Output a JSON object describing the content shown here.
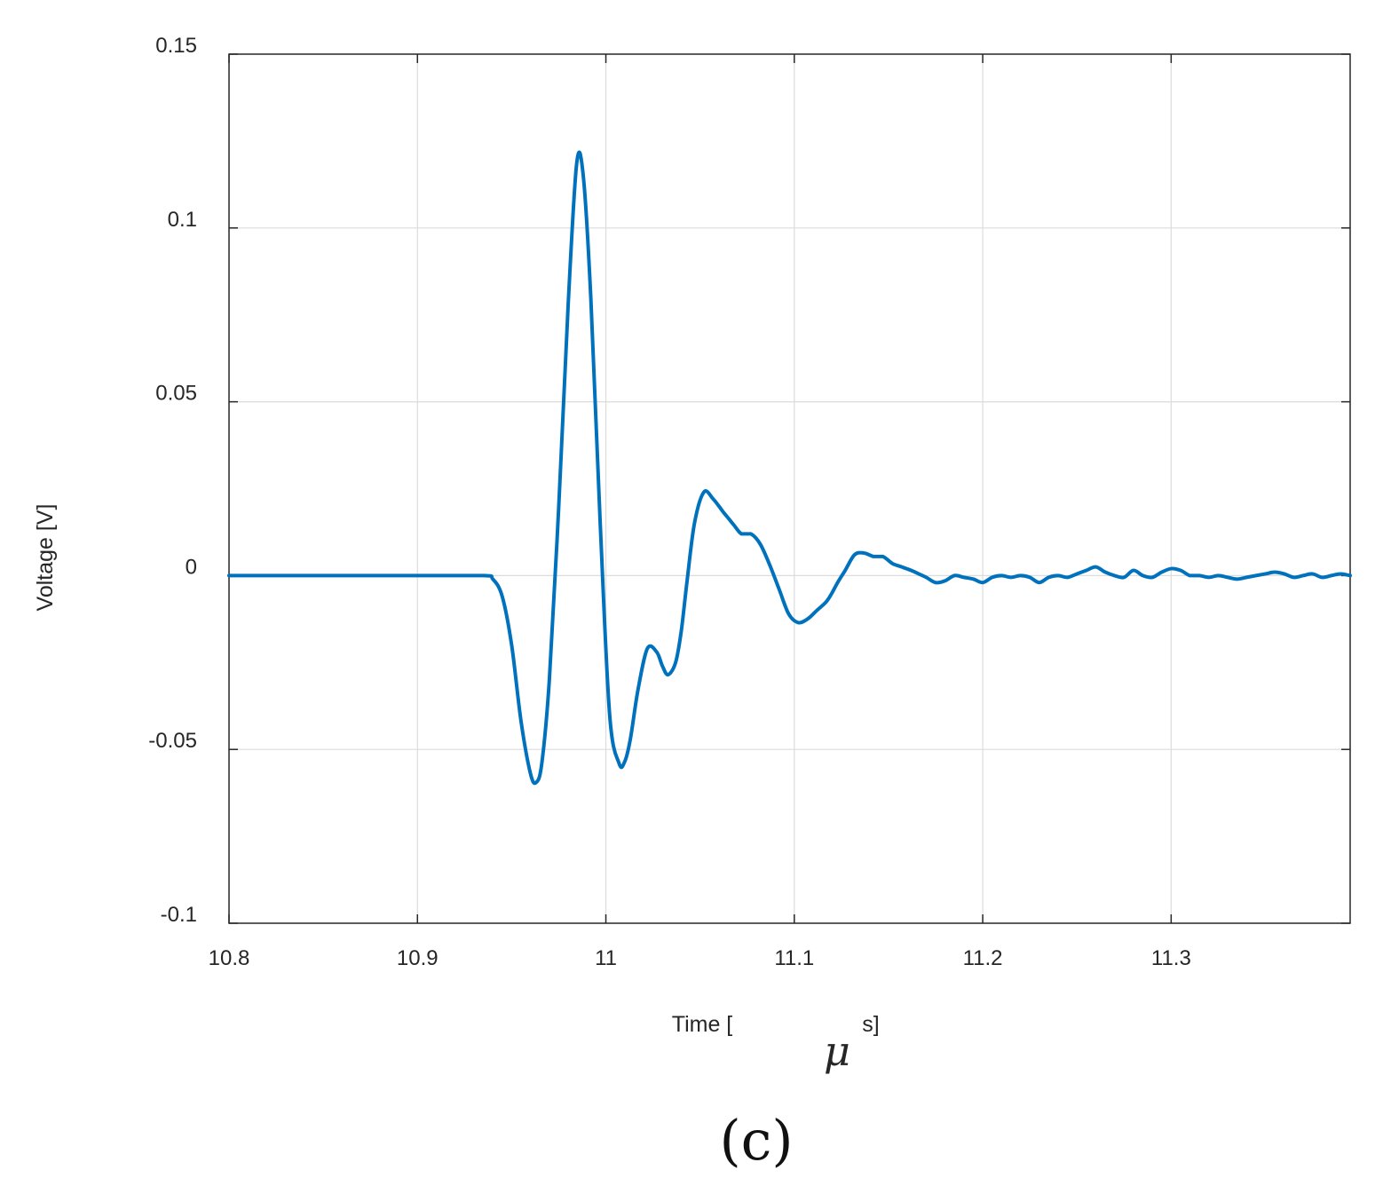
{
  "chart_data": {
    "type": "line",
    "xlabel": "Time [",
    "xlabel_symbol": "μ",
    "xlabel_unit": "s]",
    "ylabel": "Voltage [V]",
    "caption": "(c)",
    "xlim": [
      10.8,
      11.395
    ],
    "ylim": [
      -0.1,
      0.15
    ],
    "x_ticks": [
      10.8,
      10.9,
      11,
      11.1,
      11.2,
      11.3
    ],
    "x_tick_labels": [
      "10.8",
      "10.9",
      "11",
      "11.1",
      "11.2",
      "11.3"
    ],
    "y_ticks": [
      -0.1,
      -0.05,
      0,
      0.05,
      0.1,
      0.15
    ],
    "y_tick_labels": [
      "-0.1",
      "-0.05",
      "0",
      "0.05",
      "0.1",
      "0.15"
    ],
    "grid": true,
    "line_color": "#0072BD",
    "series": [
      {
        "x": [
          10.8,
          10.9,
          10.935,
          10.94,
          10.945,
          10.95,
          10.955,
          10.96,
          10.963,
          10.966,
          10.97,
          10.975,
          10.98,
          10.9845,
          10.988,
          10.992,
          10.997,
          11.002,
          11.007,
          11.01,
          11.013,
          11.017,
          11.022,
          11.027,
          11.03,
          11.033,
          11.037,
          11.04,
          11.043,
          11.047,
          11.052,
          11.057,
          11.062,
          11.065,
          11.068,
          11.072,
          11.077,
          11.082,
          11.087,
          11.092,
          11.097,
          11.102,
          11.107,
          11.112,
          11.117,
          11.12,
          11.123,
          11.127,
          11.132,
          11.137,
          11.142,
          11.147,
          11.152,
          11.157,
          11.162,
          11.166,
          11.17,
          11.175,
          11.18,
          11.185,
          11.19,
          11.195,
          11.2,
          11.205,
          11.21,
          11.215,
          11.22,
          11.225,
          11.23,
          11.235,
          11.24,
          11.245,
          11.25,
          11.255,
          11.26,
          11.265,
          11.27,
          11.275,
          11.28,
          11.285,
          11.29,
          11.295,
          11.3,
          11.305,
          11.31,
          11.315,
          11.32,
          11.325,
          11.33,
          11.335,
          11.34,
          11.345,
          11.35,
          11.355,
          11.36,
          11.365,
          11.37,
          11.375,
          11.38,
          11.385,
          11.39,
          11.395
        ],
        "y": [
          0,
          0,
          0,
          -0.001,
          -0.006,
          -0.02,
          -0.042,
          -0.057,
          -0.0595,
          -0.054,
          -0.03,
          0.02,
          0.078,
          0.1185,
          0.115,
          0.08,
          0.015,
          -0.04,
          -0.054,
          -0.0535,
          -0.047,
          -0.033,
          -0.021,
          -0.022,
          -0.026,
          -0.0285,
          -0.025,
          -0.016,
          -0.002,
          0.015,
          0.024,
          0.022,
          0.0185,
          0.0165,
          0.0145,
          0.012,
          0.012,
          0.009,
          0.003,
          -0.004,
          -0.011,
          -0.0135,
          -0.0125,
          -0.01,
          -0.0075,
          -0.005,
          -0.002,
          0.0015,
          0.006,
          0.0065,
          0.0055,
          0.0055,
          0.0035,
          0.0025,
          0.0015,
          0.0005,
          -0.0005,
          -0.002,
          -0.0015,
          0,
          -0.0005,
          -0.001,
          -0.002,
          -0.0005,
          0,
          -0.0005,
          0,
          -0.0005,
          -0.002,
          -0.0005,
          0,
          -0.0005,
          0.0005,
          0.0015,
          0.0025,
          0.001,
          0,
          -0.0005,
          0.0015,
          0,
          -0.0005,
          0.001,
          0.002,
          0.0015,
          0,
          0,
          -0.0005,
          0,
          -0.0005,
          -0.001,
          -0.0005,
          0,
          0.0005,
          0.001,
          0.0005,
          -0.0005,
          0,
          0.0005,
          -0.0005,
          0,
          0.0005,
          0
        ]
      }
    ]
  }
}
